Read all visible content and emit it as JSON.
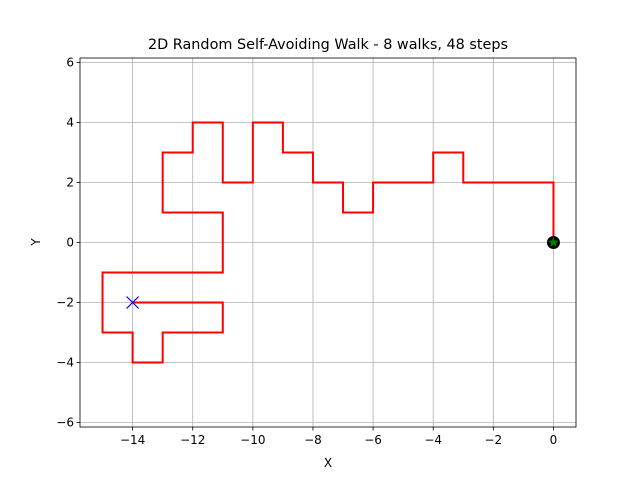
{
  "chart_data": {
    "type": "line",
    "title": "2D Random Self-Avoiding Walk - 8 walks, 48 steps",
    "x_label": "X",
    "y_label": "Y",
    "series": [
      {
        "color": "#ff0000",
        "x": [
          0,
          0,
          -3,
          -3,
          -4,
          -4,
          -6,
          -6,
          -7,
          -7,
          -8,
          -8,
          -9,
          -9,
          -10,
          -10,
          -11,
          -11,
          -12,
          -12,
          -13,
          -13,
          -11,
          -11,
          -15,
          -15,
          -14,
          -14,
          -13,
          -13,
          -11,
          -11,
          -14
        ],
        "values": [
          0,
          2,
          2,
          3,
          3,
          2,
          2,
          1,
          1,
          2,
          2,
          3,
          3,
          4,
          4,
          2,
          2,
          4,
          4,
          3,
          3,
          1,
          1,
          -1,
          -1,
          -3,
          -3,
          -4,
          -4,
          -3,
          -3,
          -2,
          -2
        ]
      }
    ],
    "start": {
      "x": 0,
      "y": 0,
      "color": "#008000"
    },
    "end": {
      "x": -14,
      "y": -2,
      "color": "#0000ff"
    },
    "xlim": [
      -15.75,
      0.75
    ],
    "ylim": [
      -6.15,
      6.15
    ],
    "xticks": [
      {
        "value": -14,
        "label": "−14"
      },
      {
        "value": -12,
        "label": "−12"
      },
      {
        "value": -10,
        "label": "−10"
      },
      {
        "value": -8,
        "label": "−8"
      },
      {
        "value": -6,
        "label": "−6"
      },
      {
        "value": -4,
        "label": "−4"
      },
      {
        "value": -2,
        "label": "−2"
      },
      0
    ],
    "yticks": [
      {
        "value": -6,
        "label": "−6"
      },
      {
        "value": -4,
        "label": "−4"
      },
      {
        "value": -2,
        "label": "−2"
      },
      0,
      2,
      4,
      6
    ],
    "grid": true
  }
}
